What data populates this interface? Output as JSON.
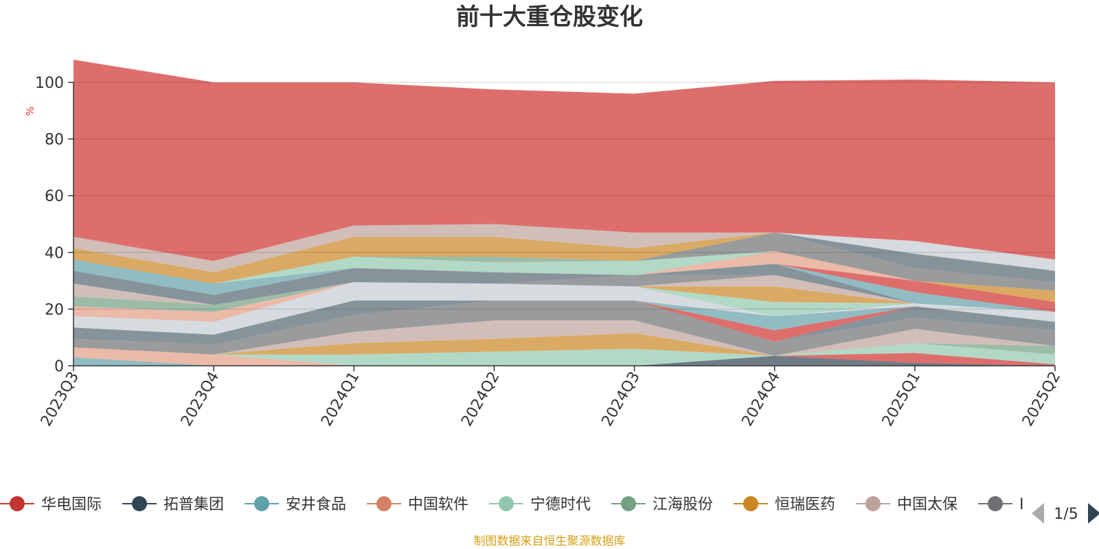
{
  "chart_data": {
    "type": "area",
    "title": "前十大重仓股变化",
    "ylabel": "%",
    "ylim": [
      0,
      100
    ],
    "yticks": [
      0,
      20,
      40,
      60,
      80,
      100
    ],
    "categories": [
      "2023Q3",
      "2023Q4",
      "2024Q1",
      "2024Q2",
      "2024Q3",
      "2024Q4",
      "2025Q1",
      "2025Q2"
    ],
    "stacked": true,
    "grid": true,
    "series": [
      {
        "name": "",
        "color": "#61a0a8",
        "values": [
          3,
          0,
          0,
          0,
          0,
          0,
          0,
          0
        ]
      },
      {
        "name": "",
        "color": "#e39c84",
        "values": [
          3.5,
          4,
          0,
          0,
          0,
          0,
          0,
          0
        ]
      },
      {
        "name": "",
        "color": "#2f4554",
        "values": [
          0,
          0,
          0,
          0,
          0,
          3.5,
          1,
          0
        ]
      },
      {
        "name": "",
        "color": "#d0312d",
        "values": [
          0,
          0,
          0,
          0,
          0,
          0,
          3.5,
          0.5
        ]
      },
      {
        "name": "",
        "color": "#91c7ae",
        "values": [
          0,
          0,
          4,
          5,
          6,
          0,
          3.5,
          3.5
        ]
      },
      {
        "name": "",
        "color": "#749f83",
        "values": [
          0,
          0,
          0,
          0,
          0,
          0,
          0,
          3
        ]
      },
      {
        "name": "",
        "color": "#ca8622",
        "values": [
          0,
          0,
          4,
          4.5,
          5.5,
          0,
          0,
          0
        ]
      },
      {
        "name": "",
        "color": "#bda29a",
        "values": [
          0,
          0,
          4,
          6.5,
          4.5,
          0,
          5,
          0
        ]
      },
      {
        "name": "",
        "color": "#6e7074",
        "values": [
          3,
          3.5,
          6,
          7,
          7,
          5,
          4,
          5.5
        ]
      },
      {
        "name": "",
        "color": "#546570",
        "values": [
          4,
          3.5,
          5,
          0,
          0,
          0,
          4,
          3
        ]
      },
      {
        "name": "",
        "color": "#d0312d",
        "values": [
          0,
          0,
          0,
          0,
          0,
          4,
          0,
          0
        ]
      },
      {
        "name": "",
        "color": "#61a0a8",
        "values": [
          0,
          0,
          0,
          0,
          0,
          5,
          0,
          0
        ]
      },
      {
        "name": "",
        "color": "#c4ccd3",
        "values": [
          4,
          4.5,
          6.5,
          6,
          5,
          0,
          1,
          3.5
        ]
      },
      {
        "name": "",
        "color": "#e39c84",
        "values": [
          3.5,
          3.5,
          0,
          0,
          0,
          0,
          0,
          0
        ]
      },
      {
        "name": "",
        "color": "#91c7ae",
        "values": [
          0,
          0,
          0,
          0,
          0,
          5,
          0,
          0
        ]
      },
      {
        "name": "",
        "color": "#749f83",
        "values": [
          3.5,
          2.5,
          0,
          0,
          0,
          0,
          0,
          0
        ]
      },
      {
        "name": "",
        "color": "#ca8622",
        "values": [
          0,
          0,
          0,
          0,
          0,
          5.5,
          0,
          0
        ]
      },
      {
        "name": "",
        "color": "#bda29a",
        "values": [
          4.5,
          0,
          0,
          0,
          0,
          4,
          0,
          0
        ]
      },
      {
        "name": "",
        "color": "#6e7074",
        "values": [
          0,
          0,
          0,
          0,
          4,
          0,
          0,
          0
        ]
      },
      {
        "name": "",
        "color": "#546570",
        "values": [
          4.5,
          3.5,
          5,
          4,
          0,
          4,
          0,
          0
        ]
      },
      {
        "name": "",
        "color": "#61a0a8",
        "values": [
          4,
          4,
          0,
          0,
          0,
          0,
          4,
          0
        ]
      },
      {
        "name": "",
        "color": "#d0312d",
        "values": [
          0,
          0,
          0,
          0,
          0,
          0,
          4,
          3.5
        ]
      },
      {
        "name": "",
        "color": "#e39c84",
        "values": [
          0,
          0,
          0,
          0,
          0,
          4.5,
          0,
          0
        ]
      },
      {
        "name": "",
        "color": "#ca8622",
        "values": [
          0,
          0,
          0,
          0,
          0,
          0,
          0,
          4
        ]
      },
      {
        "name": "",
        "color": "#91c7ae",
        "values": [
          0,
          0,
          4,
          3.5,
          5,
          0,
          0,
          0
        ]
      },
      {
        "name": "",
        "color": "#749f83",
        "values": [
          0,
          0,
          0,
          2,
          0,
          0,
          0,
          0
        ]
      },
      {
        "name": "",
        "color": "#6e7074",
        "values": [
          0,
          0,
          0,
          0,
          0,
          6.5,
          4.5,
          3
        ]
      },
      {
        "name": "",
        "color": "#546570",
        "values": [
          0,
          0,
          0,
          0,
          0,
          0,
          5,
          4
        ]
      },
      {
        "name": "",
        "color": "#c4ccd3",
        "values": [
          0,
          0,
          0,
          0,
          0,
          0,
          4.5,
          4
        ]
      },
      {
        "name": "",
        "color": "#ca8622",
        "values": [
          4,
          4,
          7,
          7,
          4.5,
          0,
          0,
          0
        ]
      },
      {
        "name": "",
        "color": "#bda29a",
        "values": [
          4,
          4,
          4,
          4.5,
          5.5,
          0,
          0,
          0
        ]
      },
      {
        "name": "",
        "color": "#d0312d",
        "values": [
          62.5,
          63,
          50.5,
          47.5,
          49,
          53.5,
          57,
          62.5
        ]
      }
    ]
  },
  "legend": {
    "items": [
      {
        "label": "华电国际",
        "color": "#c23531"
      },
      {
        "label": "拓普集团",
        "color": "#2f4554"
      },
      {
        "label": "安井食品",
        "color": "#61a0a8"
      },
      {
        "label": "中国软件",
        "color": "#d48265"
      },
      {
        "label": "宁德时代",
        "color": "#91c7ae"
      },
      {
        "label": "江海股份",
        "color": "#749f83"
      },
      {
        "label": "恒瑞医药",
        "color": "#ca8622"
      },
      {
        "label": "中国太保",
        "color": "#bda29a"
      },
      {
        "label": "I",
        "color": "#6e7074"
      }
    ],
    "page": "1/5"
  },
  "source": "制图数据来自恒生聚源数据库"
}
